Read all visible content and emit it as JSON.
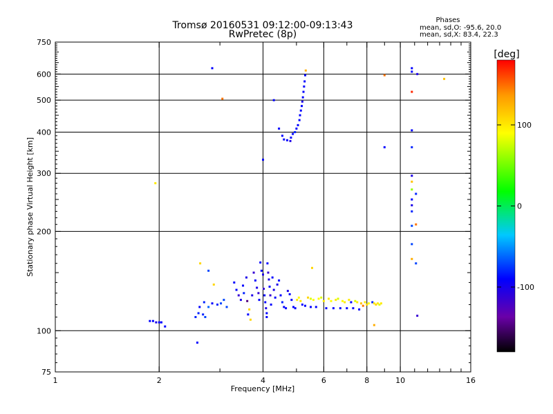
{
  "chart_data": {
    "type": "scatter",
    "title": "Tromsø 20160531 09:12:00-09:13:43",
    "subtitle": "RwPretec (8p)",
    "info": {
      "heading": "Phases",
      "line1": "mean, sd,O: -95.6, 20.0",
      "line2": "mean, sd,X: 83.4, 22.3"
    },
    "xlabel": "Frequency [MHz]",
    "ylabel": "Stationary phase Virtual Height [km]",
    "x_scale": "log",
    "y_scale": "log",
    "xlim": [
      1,
      16
    ],
    "ylim": [
      75,
      750
    ],
    "x_ticks": [
      1,
      2,
      4,
      6,
      8,
      10,
      16
    ],
    "x_tick_labels": [
      "1",
      "2",
      "4",
      "6",
      "8",
      "10",
      "16"
    ],
    "x_grid": [
      2,
      4,
      6,
      8,
      10
    ],
    "y_ticks": [
      75,
      100,
      200,
      300,
      400,
      500,
      600,
      750
    ],
    "y_tick_labels": [
      "75",
      "100",
      "200",
      "300",
      "400",
      "500",
      "600",
      "750"
    ],
    "y_grid": [
      100,
      200,
      300,
      400,
      500,
      600
    ],
    "grid": true,
    "colorbar": {
      "label": "[deg]",
      "range": [
        -180,
        180
      ],
      "ticks": [
        100,
        0,
        -100
      ],
      "tick_labels": [
        "100",
        "0",
        "-100"
      ],
      "colormap": "rainbow (black-purple-blue-cyan-green-yellow-orange-red)"
    },
    "points_columns": [
      "frequency_MHz",
      "virtual_height_km",
      "phase_deg"
    ],
    "points": [
      [
        1.88,
        107,
        -100
      ],
      [
        1.92,
        107,
        -100
      ],
      [
        1.96,
        106,
        -110
      ],
      [
        2.0,
        106,
        -100
      ],
      [
        2.03,
        106,
        -100
      ],
      [
        2.08,
        103,
        -100
      ],
      [
        1.95,
        280,
        100
      ],
      [
        2.58,
        92,
        -100
      ],
      [
        2.55,
        110,
        -90
      ],
      [
        2.6,
        113,
        -90
      ],
      [
        2.68,
        112,
        -90
      ],
      [
        2.72,
        110,
        -80
      ],
      [
        2.62,
        118,
        -100
      ],
      [
        2.7,
        122,
        -90
      ],
      [
        2.78,
        118,
        -70
      ],
      [
        2.85,
        121,
        -100
      ],
      [
        2.95,
        120,
        -90
      ],
      [
        3.02,
        121,
        -80
      ],
      [
        3.08,
        124,
        -80
      ],
      [
        3.14,
        118,
        -80
      ],
      [
        2.63,
        160,
        110
      ],
      [
        2.78,
        152,
        -80
      ],
      [
        2.88,
        138,
        110
      ],
      [
        2.85,
        625,
        -100
      ],
      [
        3.05,
        505,
        150
      ],
      [
        3.3,
        140,
        -100
      ],
      [
        3.35,
        133,
        -100
      ],
      [
        3.4,
        128,
        -120
      ],
      [
        3.45,
        124,
        -110
      ],
      [
        3.5,
        137,
        -100
      ],
      [
        3.52,
        130,
        -90
      ],
      [
        3.58,
        145,
        -110
      ],
      [
        3.6,
        123,
        -150
      ],
      [
        3.62,
        112,
        -100
      ],
      [
        3.65,
        116,
        110
      ],
      [
        3.68,
        108,
        110
      ],
      [
        3.72,
        128,
        -110
      ],
      [
        3.76,
        150,
        -120
      ],
      [
        3.8,
        142,
        -100
      ],
      [
        3.84,
        135,
        -110
      ],
      [
        3.88,
        130,
        -120
      ],
      [
        3.9,
        124,
        -100
      ],
      [
        3.93,
        161,
        -100
      ],
      [
        3.96,
        152,
        -100
      ],
      [
        4.0,
        148,
        -110
      ],
      [
        4.02,
        134,
        -120
      ],
      [
        4.04,
        128,
        -100
      ],
      [
        4.06,
        122,
        -100
      ],
      [
        4.08,
        117,
        -110
      ],
      [
        4.1,
        113,
        -100
      ],
      [
        4.12,
        160,
        -100
      ],
      [
        4.14,
        150,
        -120
      ],
      [
        4.16,
        143,
        -110
      ],
      [
        4.18,
        136,
        -100
      ],
      [
        4.2,
        128,
        -120
      ],
      [
        4.22,
        120,
        -100
      ],
      [
        4.26,
        145,
        -100
      ],
      [
        4.3,
        133,
        -110
      ],
      [
        4.34,
        126,
        -100
      ],
      [
        4.4,
        138,
        -110
      ],
      [
        4.45,
        142,
        -100
      ],
      [
        4.5,
        128,
        -100
      ],
      [
        4.55,
        122,
        -90
      ],
      [
        4.6,
        118,
        -100
      ],
      [
        4.66,
        117,
        -100
      ],
      [
        4.72,
        132,
        -110
      ],
      [
        4.78,
        129,
        -100
      ],
      [
        4.84,
        124,
        -100
      ],
      [
        4.9,
        118,
        -100
      ],
      [
        4.96,
        117,
        -100
      ],
      [
        5.02,
        124,
        100
      ],
      [
        5.08,
        126,
        90
      ],
      [
        5.14,
        123,
        100
      ],
      [
        5.2,
        120,
        -100
      ],
      [
        5.3,
        119,
        -100
      ],
      [
        5.4,
        126,
        110
      ],
      [
        5.5,
        125,
        80
      ],
      [
        5.6,
        124,
        90
      ],
      [
        5.5,
        118,
        -100
      ],
      [
        5.7,
        118,
        -100
      ],
      [
        5.8,
        125,
        90
      ],
      [
        5.9,
        126,
        80
      ],
      [
        6.0,
        123,
        100
      ],
      [
        6.1,
        117,
        -100
      ],
      [
        6.2,
        125,
        100
      ],
      [
        6.3,
        123,
        90
      ],
      [
        6.4,
        117,
        -100
      ],
      [
        6.5,
        124,
        100
      ],
      [
        6.6,
        125,
        80
      ],
      [
        6.7,
        117,
        -100
      ],
      [
        6.8,
        123,
        90
      ],
      [
        6.9,
        122,
        100
      ],
      [
        7.0,
        117,
        -100
      ],
      [
        7.1,
        124,
        100
      ],
      [
        7.2,
        122,
        -100
      ],
      [
        7.3,
        117,
        -100
      ],
      [
        7.4,
        123,
        80
      ],
      [
        7.5,
        122,
        100
      ],
      [
        7.6,
        116,
        -100
      ],
      [
        7.7,
        121,
        120
      ],
      [
        7.8,
        119,
        150
      ],
      [
        7.9,
        122,
        100
      ],
      [
        8.0,
        120,
        110
      ],
      [
        8.1,
        121,
        90
      ],
      [
        8.3,
        122,
        -90
      ],
      [
        8.4,
        121,
        100
      ],
      [
        8.5,
        120,
        110
      ],
      [
        8.6,
        121,
        100
      ],
      [
        8.7,
        120,
        80
      ],
      [
        8.8,
        121,
        100
      ],
      [
        8.4,
        104,
        130
      ],
      [
        5.55,
        155,
        110
      ],
      [
        4.1,
        110,
        -100
      ],
      [
        4.0,
        330,
        -100
      ],
      [
        4.45,
        410,
        -100
      ],
      [
        4.55,
        390,
        -100
      ],
      [
        4.6,
        380,
        -100
      ],
      [
        4.7,
        378,
        -100
      ],
      [
        4.8,
        376,
        -110
      ],
      [
        4.82,
        385,
        -100
      ],
      [
        4.88,
        395,
        -100
      ],
      [
        4.95,
        400,
        -90
      ],
      [
        5.0,
        410,
        -100
      ],
      [
        5.05,
        420,
        -100
      ],
      [
        5.1,
        435,
        -100
      ],
      [
        5.12,
        450,
        -100
      ],
      [
        5.15,
        465,
        -100
      ],
      [
        5.18,
        480,
        -100
      ],
      [
        5.2,
        495,
        -110
      ],
      [
        5.22,
        510,
        -100
      ],
      [
        5.24,
        530,
        -100
      ],
      [
        5.26,
        550,
        -100
      ],
      [
        5.28,
        570,
        -100
      ],
      [
        5.3,
        595,
        -100
      ],
      [
        5.32,
        615,
        130
      ],
      [
        4.3,
        500,
        -100
      ],
      [
        9.0,
        595,
        150
      ],
      [
        9.0,
        360,
        -100
      ],
      [
        10.8,
        625,
        -100
      ],
      [
        10.8,
        610,
        -100
      ],
      [
        11.2,
        600,
        -110
      ],
      [
        10.8,
        530,
        170
      ],
      [
        10.8,
        405,
        -100
      ],
      [
        10.8,
        360,
        -90
      ],
      [
        10.8,
        295,
        -110
      ],
      [
        10.8,
        283,
        120
      ],
      [
        10.8,
        268,
        60
      ],
      [
        10.8,
        250,
        -100
      ],
      [
        10.8,
        240,
        -110
      ],
      [
        11.1,
        260,
        -90
      ],
      [
        10.8,
        230,
        -90
      ],
      [
        10.8,
        208,
        -80
      ],
      [
        11.1,
        210,
        150
      ],
      [
        10.8,
        183,
        -80
      ],
      [
        10.8,
        165,
        130
      ],
      [
        11.1,
        160,
        -80
      ],
      [
        11.2,
        111,
        -120
      ],
      [
        13.4,
        580,
        120
      ]
    ]
  }
}
